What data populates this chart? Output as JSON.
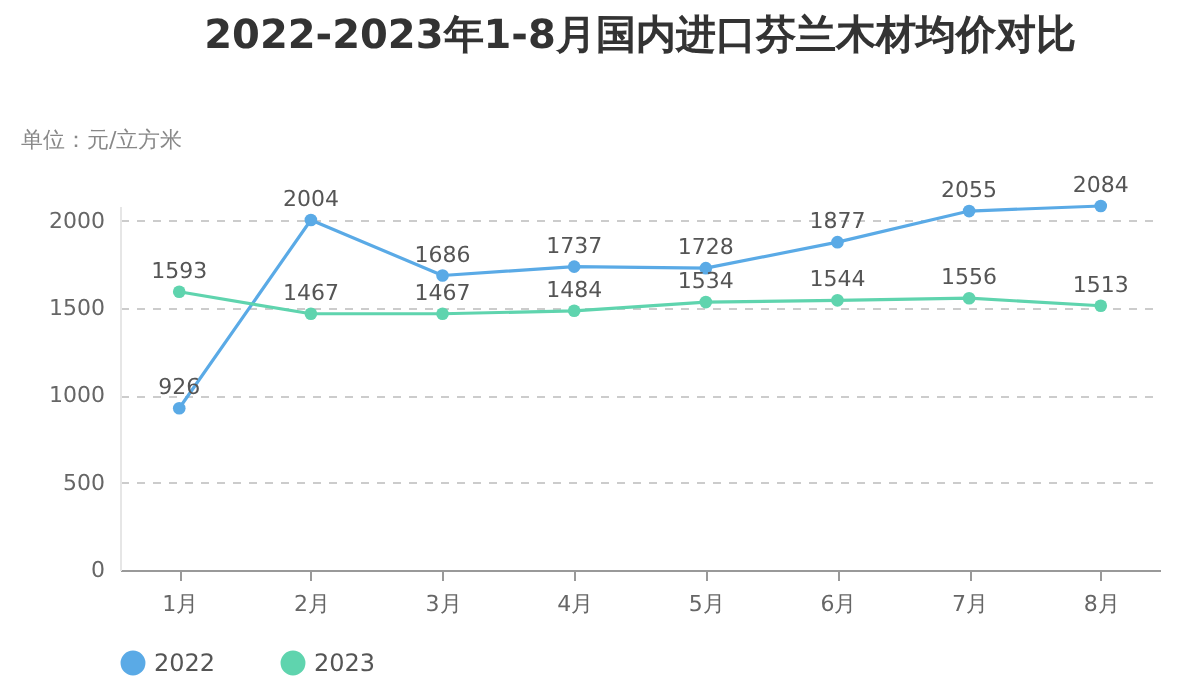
{
  "chart_data": {
    "type": "line",
    "title": "2022-2023年1-8月国内进口芬兰木材均价对比",
    "ylabel": "单位：元/立方米",
    "categories": [
      "1月",
      "2月",
      "3月",
      "4月",
      "5月",
      "6月",
      "7月",
      "8月"
    ],
    "series": [
      {
        "name": "2022",
        "color": "#5aaae6",
        "values": [
          926,
          2004,
          1686,
          1737,
          1728,
          1877,
          2055,
          2084
        ]
      },
      {
        "name": "2023",
        "color": "#5fd4ae",
        "values": [
          1593,
          1467,
          1467,
          1484,
          1534,
          1544,
          1556,
          1513
        ]
      }
    ],
    "ylim": [
      0,
      2084
    ],
    "yticks": [
      0,
      500,
      1000,
      1500,
      2000
    ],
    "grid": "y",
    "legend": "bottom",
    "marker": "circle",
    "line_style": "solid",
    "data_labels": true
  }
}
